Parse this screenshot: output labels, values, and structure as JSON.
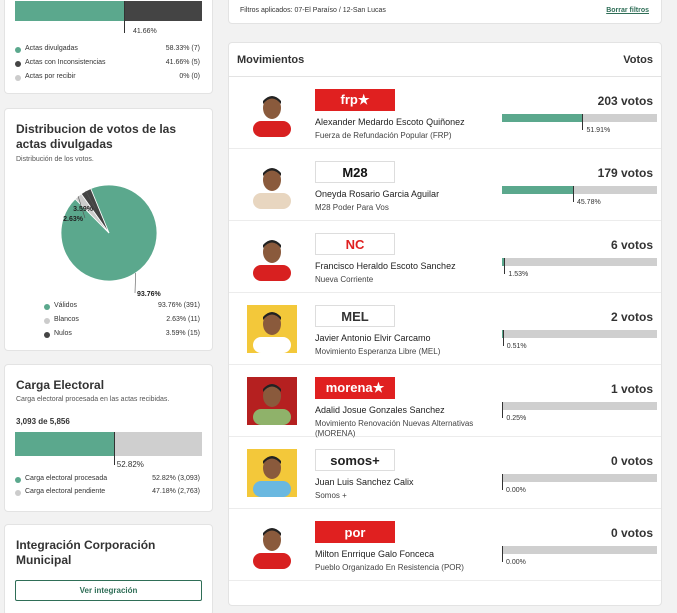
{
  "actas": {
    "top_pct": "41.66%",
    "rows": [
      {
        "label": "Actas divulgadas",
        "value": "58.33% (7)",
        "color": "#5ba88d"
      },
      {
        "label": "Actas con Inconsistencias",
        "value": "41.66% (5)",
        "color": "#444444"
      },
      {
        "label": "Actas por recibir",
        "value": "0% (0)",
        "color": "#cccccc"
      }
    ]
  },
  "distribucion": {
    "title": "Distribucion de votos de las actas divulgadas",
    "subtitle": "Distribución de los votos.",
    "legend": [
      {
        "label": "Válidos",
        "value": "93.76% (391)",
        "color": "#5ba88d"
      },
      {
        "label": "Blancos",
        "value": "2.63% (11)",
        "color": "#cccccc"
      },
      {
        "label": "Nulos",
        "value": "3.59% (15)",
        "color": "#444444"
      }
    ]
  },
  "chart_data": {
    "type": "pie",
    "slices": [
      {
        "label": "Válidos",
        "value": 93.76,
        "text": "93.76%",
        "color": "#5ba88d"
      },
      {
        "label": "Blancos",
        "value": 2.63,
        "text": "2.63%",
        "color": "#cccccc"
      },
      {
        "label": "Nulos",
        "value": 3.59,
        "text": "3.59%",
        "color": "#444444"
      }
    ]
  },
  "carga": {
    "title": "Carga Electoral",
    "subtitle": "Carga electoral procesada en las actas recibidas.",
    "count": "3,093 de 5,856",
    "pct": "52.82%",
    "progress": 0.5282,
    "rows": [
      {
        "label": "Carga electoral procesada",
        "value": "52.82% (3,093)",
        "color": "#5ba88d"
      },
      {
        "label": "Carga electoral pendiente",
        "value": "47.18% (2,763)",
        "color": "#cccccc"
      }
    ]
  },
  "integracion": {
    "title": "Integración Corporación Municipal",
    "button": "Ver integración"
  },
  "filtros": {
    "text": "Filtros aplicados: 07-El Paraíso / 12-San Lucas",
    "clear": "Borrar filtros"
  },
  "movimientos": {
    "title": "Movimientos",
    "votes_header": "Votos",
    "candidates": [
      {
        "name": "Alexander Medardo Escoto Quiñonez",
        "party": "Fuerza de Refundación Popular (FRP)",
        "votes": "203 votos",
        "pct": "51.91%",
        "share": 0.5191,
        "logo": "frp★",
        "logo_bg": "#e02020",
        "logo_fg": "#ffffff",
        "shirt": "#d82020",
        "bg": "#ffffff"
      },
      {
        "name": "Oneyda Rosario Garcia Aguilar",
        "party": "M28 Poder Para Vos",
        "votes": "179 votos",
        "pct": "45.78%",
        "share": 0.4578,
        "logo": "M28",
        "logo_bg": "#ffffff",
        "logo_fg": "#111111",
        "shirt": "#e8d6c0",
        "bg": "#ffffff"
      },
      {
        "name": "Francisco Heraldo Escoto Sanchez",
        "party": "Nueva Corriente",
        "votes": "6 votos",
        "pct": "1.53%",
        "share": 0.0153,
        "logo": "NC",
        "logo_bg": "#ffffff",
        "logo_fg": "#e02020",
        "shirt": "#d82020",
        "bg": "#ffffff"
      },
      {
        "name": "Javier Antonio Elvir Carcamo",
        "party": "Movimiento Esperanza Libre (MEL)",
        "votes": "2 votos",
        "pct": "0.51%",
        "share": 0.0051,
        "logo": "MEL",
        "logo_bg": "#ffffff",
        "logo_fg": "#333333",
        "shirt": "#ffffff",
        "bg": "#f3c83a"
      },
      {
        "name": "Adalid Josue Gonzales Sanchez",
        "party": "Movimiento Renovación Nuevas Alternativas (MORENA)",
        "votes": "1 votos",
        "pct": "0.25%",
        "share": 0.0025,
        "logo": "morena★",
        "logo_bg": "#e02020",
        "logo_fg": "#ffffff",
        "shirt": "#8fb26a",
        "bg": "#b52020"
      },
      {
        "name": "Juan Luis Sanchez Calix",
        "party": "Somos +",
        "votes": "0 votos",
        "pct": "0.00%",
        "share": 0,
        "logo": "somos+",
        "logo_bg": "#ffffff",
        "logo_fg": "#222222",
        "shirt": "#6ab8e0",
        "bg": "#f3c83a"
      },
      {
        "name": "Milton Enrrique Galo Fonceca",
        "party": "Pueblo Organizado En Resistencia (POR)",
        "votes": "0 votos",
        "pct": "0.00%",
        "share": 0,
        "logo": "por",
        "logo_bg": "#e02020",
        "logo_fg": "#ffffff",
        "shirt": "#d82020",
        "bg": "#ffffff"
      }
    ]
  }
}
